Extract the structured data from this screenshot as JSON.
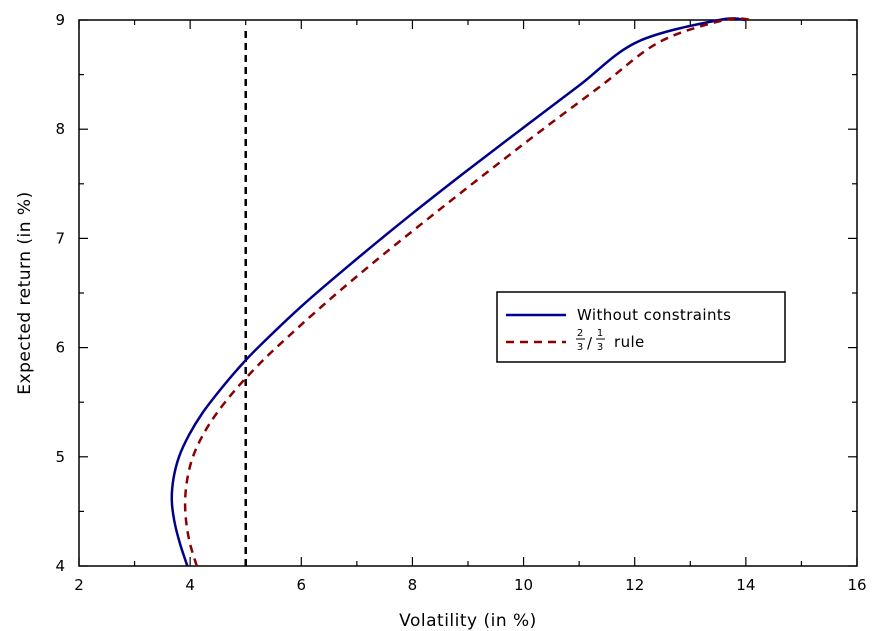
{
  "chart_data": {
    "type": "line",
    "xlabel": "Volatility (in %)",
    "ylabel": "Expected return (in %)",
    "xlim": [
      2,
      16
    ],
    "ylim": [
      4,
      9
    ],
    "x_ticks": [
      2,
      4,
      6,
      8,
      10,
      12,
      14,
      16
    ],
    "y_ticks": [
      4,
      5,
      6,
      7,
      8,
      9
    ],
    "grid": false,
    "legend_position": "right-middle",
    "vertical_reference_line": {
      "x": 5,
      "style": "dashed",
      "color": "#000000"
    },
    "series": [
      {
        "name": "Without constraints",
        "color": "#00008b",
        "style": "solid",
        "points": [
          [
            3.95,
            4.0
          ],
          [
            3.82,
            4.2
          ],
          [
            3.72,
            4.4
          ],
          [
            3.67,
            4.6
          ],
          [
            3.7,
            4.8
          ],
          [
            3.8,
            5.0
          ],
          [
            3.98,
            5.2
          ],
          [
            4.22,
            5.4
          ],
          [
            4.52,
            5.6
          ],
          [
            4.85,
            5.8
          ],
          [
            5.22,
            6.0
          ],
          [
            6.05,
            6.4
          ],
          [
            6.97,
            6.8
          ],
          [
            7.93,
            7.2
          ],
          [
            8.93,
            7.6
          ],
          [
            9.96,
            8.0
          ],
          [
            11.0,
            8.4
          ],
          [
            12.05,
            8.8
          ],
          [
            13.52,
            9.0
          ],
          [
            14.0,
            9.0
          ]
        ]
      },
      {
        "name": "rule",
        "label_fraction": {
          "a_num": "2",
          "a_den": "3",
          "b_num": "1",
          "b_den": "3"
        },
        "color": "#8b0000",
        "style": "dashed",
        "points": [
          [
            4.12,
            4.0
          ],
          [
            4.0,
            4.2
          ],
          [
            3.93,
            4.4
          ],
          [
            3.91,
            4.6
          ],
          [
            3.95,
            4.8
          ],
          [
            4.05,
            5.0
          ],
          [
            4.23,
            5.2
          ],
          [
            4.48,
            5.4
          ],
          [
            4.79,
            5.6
          ],
          [
            5.15,
            5.8
          ],
          [
            5.55,
            6.0
          ],
          [
            6.42,
            6.4
          ],
          [
            7.35,
            6.8
          ],
          [
            8.33,
            7.2
          ],
          [
            9.33,
            7.6
          ],
          [
            10.35,
            8.0
          ],
          [
            11.4,
            8.4
          ],
          [
            12.45,
            8.8
          ],
          [
            13.62,
            9.0
          ],
          [
            14.12,
            9.0
          ]
        ]
      }
    ]
  }
}
